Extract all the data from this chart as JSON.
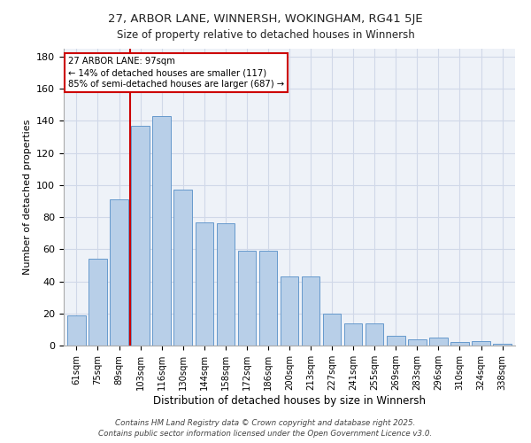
{
  "title": "27, ARBOR LANE, WINNERSH, WOKINGHAM, RG41 5JE",
  "subtitle": "Size of property relative to detached houses in Winnersh",
  "xlabel": "Distribution of detached houses by size in Winnersh",
  "ylabel": "Number of detached properties",
  "categories": [
    "61sqm",
    "75sqm",
    "89sqm",
    "103sqm",
    "116sqm",
    "130sqm",
    "144sqm",
    "158sqm",
    "172sqm",
    "186sqm",
    "200sqm",
    "213sqm",
    "227sqm",
    "241sqm",
    "255sqm",
    "269sqm",
    "283sqm",
    "296sqm",
    "310sqm",
    "324sqm",
    "338sqm"
  ],
  "values": [
    19,
    54,
    91,
    137,
    143,
    97,
    77,
    76,
    59,
    59,
    43,
    43,
    20,
    14,
    14,
    6,
    4,
    5,
    2,
    3,
    1
  ],
  "bar_color": "#b8cfe8",
  "bar_edge_color": "#6699cc",
  "vline_index": 2.5,
  "vline_color": "#cc0000",
  "annotation_text": "27 ARBOR LANE: 97sqm\n← 14% of detached houses are smaller (117)\n85% of semi-detached houses are larger (687) →",
  "annotation_box_color": "#cc0000",
  "ylim": [
    0,
    185
  ],
  "yticks": [
    0,
    20,
    40,
    60,
    80,
    100,
    120,
    140,
    160,
    180
  ],
  "grid_color": "#d0d8e8",
  "bg_color": "#eef2f8",
  "footer": "Contains HM Land Registry data © Crown copyright and database right 2025.\nContains public sector information licensed under the Open Government Licence v3.0."
}
